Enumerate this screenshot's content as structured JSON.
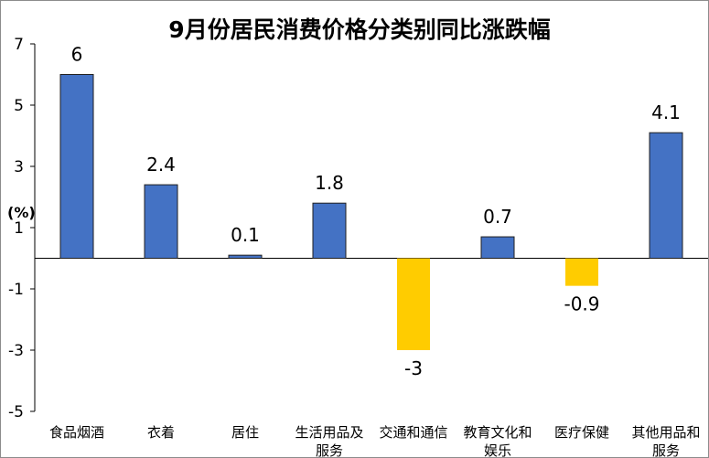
{
  "chart_data": {
    "type": "bar",
    "title": "9月份居民消费价格分类别同比涨跌幅",
    "ylabel": "(%)",
    "ylim": [
      -5,
      7
    ],
    "yticks": [
      "7",
      "5",
      "3",
      "1",
      "-1",
      "-3",
      "-5"
    ],
    "ytick_values": [
      7,
      5,
      3,
      1,
      -1,
      -3,
      -5
    ],
    "categories": [
      [
        "食品烟酒"
      ],
      [
        "衣着"
      ],
      [
        "居住"
      ],
      [
        "生活用品及",
        "服务"
      ],
      [
        "交通和通信"
      ],
      [
        "教育文化和",
        "娱乐"
      ],
      [
        "医疗保健"
      ],
      [
        "其他用品和",
        "服务"
      ]
    ],
    "values": [
      6,
      2.4,
      0.1,
      1.8,
      -3,
      0.7,
      -0.9,
      4.1
    ],
    "data_labels": [
      "6",
      "2.4",
      "0.1",
      "1.8",
      "-3",
      "0.7",
      "-0.9",
      "4.1"
    ],
    "colors": {
      "positive": "#4472C4",
      "negative": "#FFCC00",
      "bar_edge": "#1f1f1f",
      "axis": "#000000"
    },
    "grid": false,
    "legend": "none"
  }
}
